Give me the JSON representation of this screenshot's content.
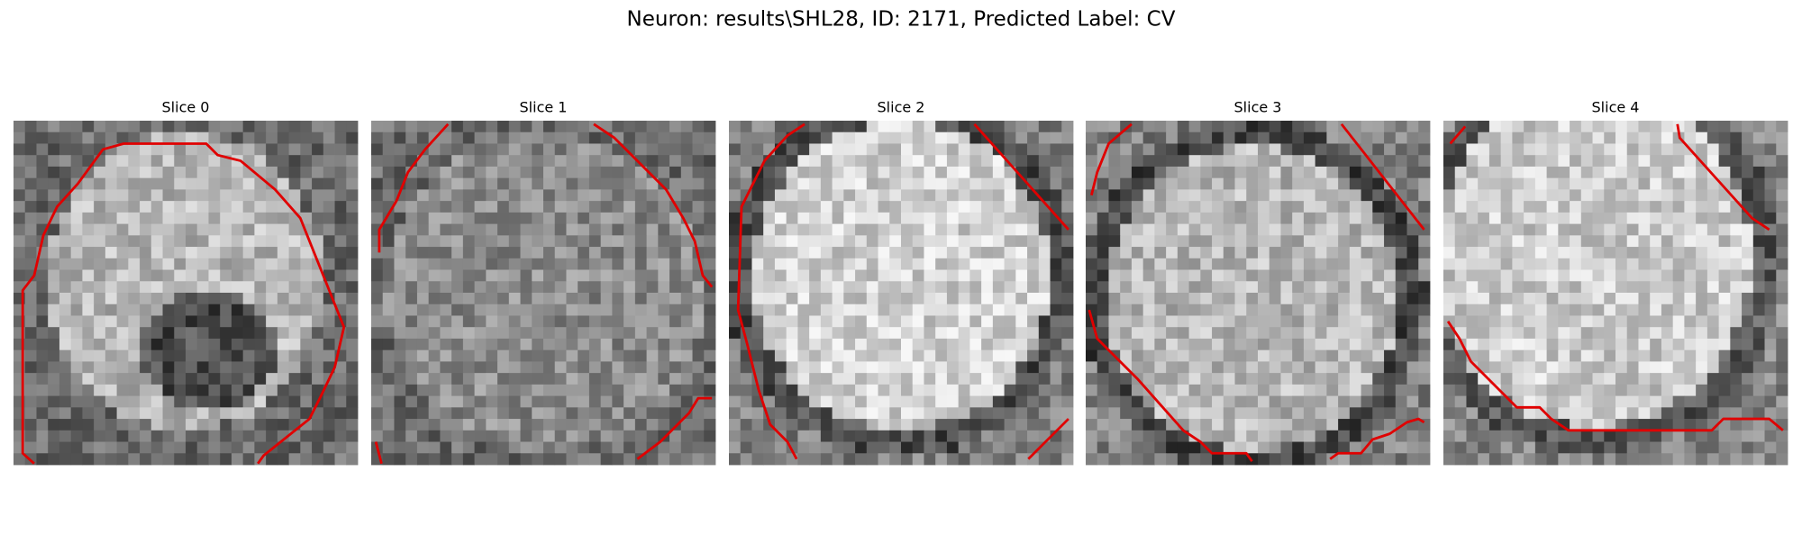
{
  "title": "Neuron: results\\SHL28, ID: 2171, Predicted Label: CV",
  "panels": [
    {
      "title": "Slice 0"
    },
    {
      "title": "Slice 1"
    },
    {
      "title": "Slice 2"
    },
    {
      "title": "Slice 3"
    },
    {
      "title": "Slice 4"
    }
  ]
}
